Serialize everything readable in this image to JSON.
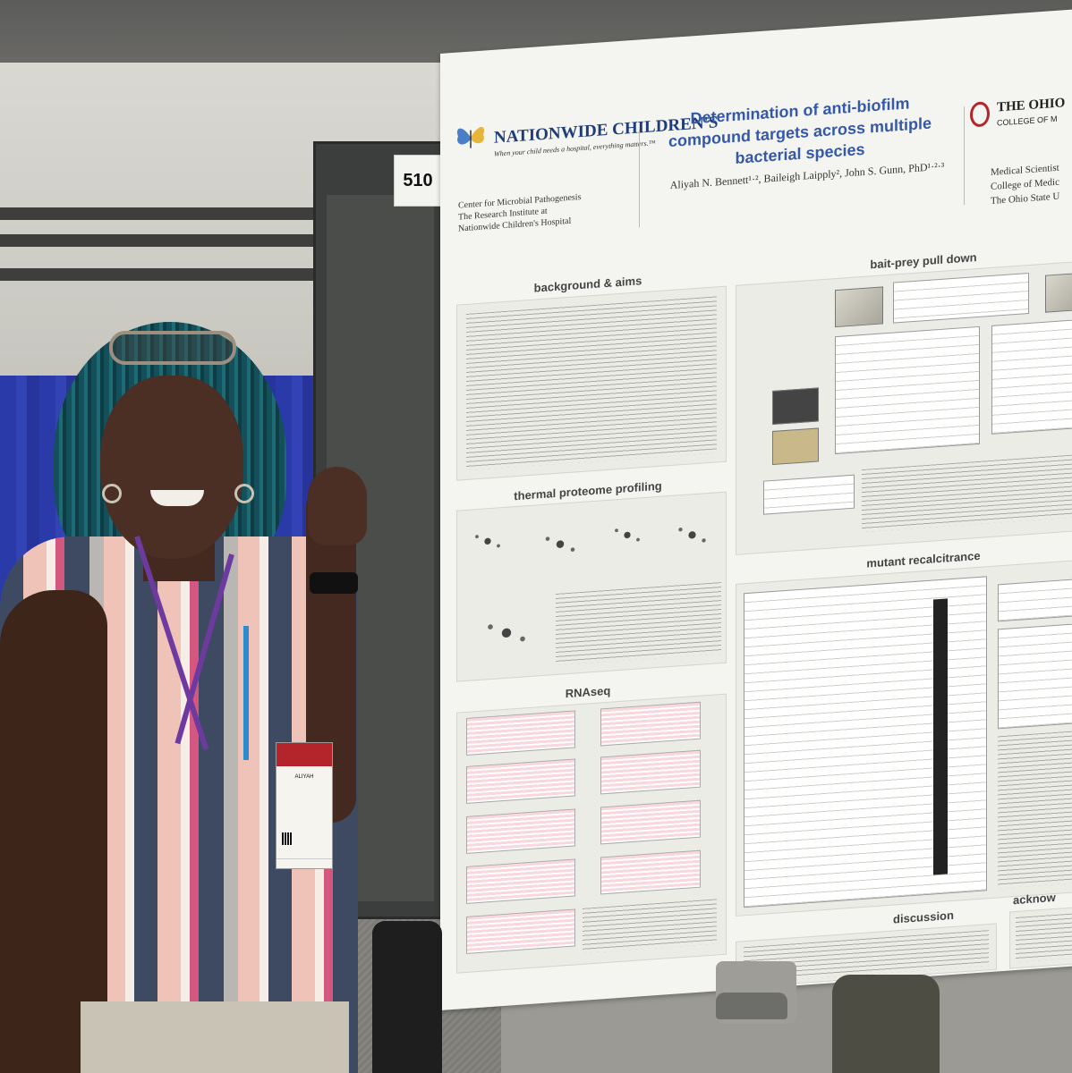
{
  "booth": {
    "number": "510"
  },
  "poster": {
    "org_logo": {
      "name": "NATIONWIDE CHILDREN'S",
      "tagline": "When your child needs a hospital, everything matters.™"
    },
    "center": "Center for Microbial Pathogenesis\nThe Research Institute at\nNationwide Children's Hospital",
    "title": "Determination of anti-biofilm compound targets across multiple bacterial species",
    "authors": "Aliyah N. Bennett¹·², Baileigh Laipply², John S. Gunn, PhD¹·²·³",
    "partner_logo": {
      "name": "THE OHIO",
      "sub": "COLLEGE OF M"
    },
    "partner_dept": "Medical Scientist\nCollege of Medic\nThe Ohio State U",
    "sections": {
      "background": "background & aims",
      "tpp": "thermal proteome profiling",
      "rnaseq": "RNAseq",
      "pulldown": "bait-prey pull down",
      "mutant": "mutant recalcitrance",
      "discussion": "discussion",
      "ack": "acknow"
    }
  },
  "badge": {
    "name": "ALIYAH"
  }
}
